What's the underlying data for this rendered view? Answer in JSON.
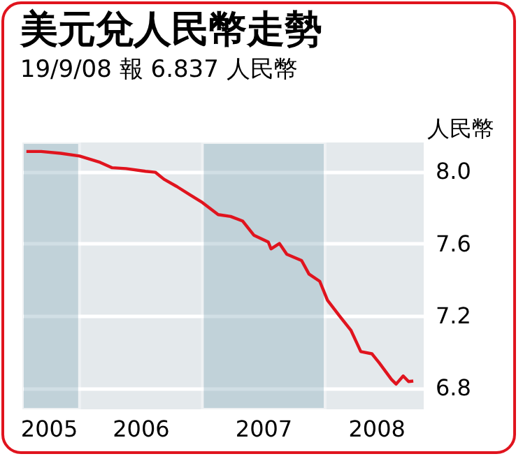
{
  "chart_data": {
    "type": "line",
    "title": "美元兌人民幣走勢",
    "subtitle": "19/9/08 報 6.837 人民幣",
    "ylabel": "人民幣",
    "x": [
      "2005-07-27",
      "2005-09-09",
      "2005-11-06",
      "2006-01-01",
      "2006-03-03",
      "2006-04-08",
      "2006-05-19",
      "2006-07-16",
      "2006-08-14",
      "2006-09-09",
      "2006-10-16",
      "2006-11-25",
      "2007-01-01",
      "2007-02-17",
      "2007-03-26",
      "2007-05-01",
      "2007-06-03",
      "2007-07-16",
      "2007-07-24",
      "2007-08-18",
      "2007-09-09",
      "2007-10-23",
      "2007-11-14",
      "2007-12-16",
      "2008-01-08",
      "2008-02-14",
      "2008-03-18",
      "2008-04-16",
      "2008-05-19",
      "2008-06-10",
      "2008-07-16",
      "2008-07-30",
      "2008-08-20",
      "2008-09-05",
      "2008-09-19"
    ],
    "series": [
      {
        "color": "#e0141e",
        "values": [
          8.11,
          8.11,
          8.1,
          8.085,
          8.05,
          8.02,
          8.015,
          8.0,
          7.995,
          7.956,
          7.917,
          7.87,
          7.827,
          7.76,
          7.75,
          7.724,
          7.646,
          7.608,
          7.57,
          7.6,
          7.54,
          7.505,
          7.43,
          7.39,
          7.285,
          7.195,
          7.117,
          7.0,
          6.988,
          6.937,
          6.846,
          6.82,
          6.865,
          6.834,
          6.837
        ]
      }
    ],
    "xlim": [
      "2005-07-15",
      "2008-10-20"
    ],
    "xticks": [
      {
        "value": "2005-10-01",
        "label": "2005"
      },
      {
        "value": "2006-07-01",
        "label": "2006"
      },
      {
        "value": "2007-07-01",
        "label": "2007"
      },
      {
        "value": "2008-06-01",
        "label": "2008"
      }
    ],
    "ylim": [
      6.68,
      8.16
    ],
    "yticks": [
      {
        "value": 6.8,
        "label": "6.8"
      },
      {
        "value": 7.2,
        "label": "7.2"
      },
      {
        "value": 7.6,
        "label": "7.6"
      },
      {
        "value": 8,
        "label": "8.0"
      }
    ],
    "grid": "y",
    "bands": [
      {
        "axis": "x",
        "from": "2005-07-15",
        "to": "2006-01-01",
        "color": "#c2d2da"
      },
      {
        "axis": "x",
        "from": "2007-01-01",
        "to": "2008-01-01",
        "color": "#c2d2da"
      }
    ]
  }
}
